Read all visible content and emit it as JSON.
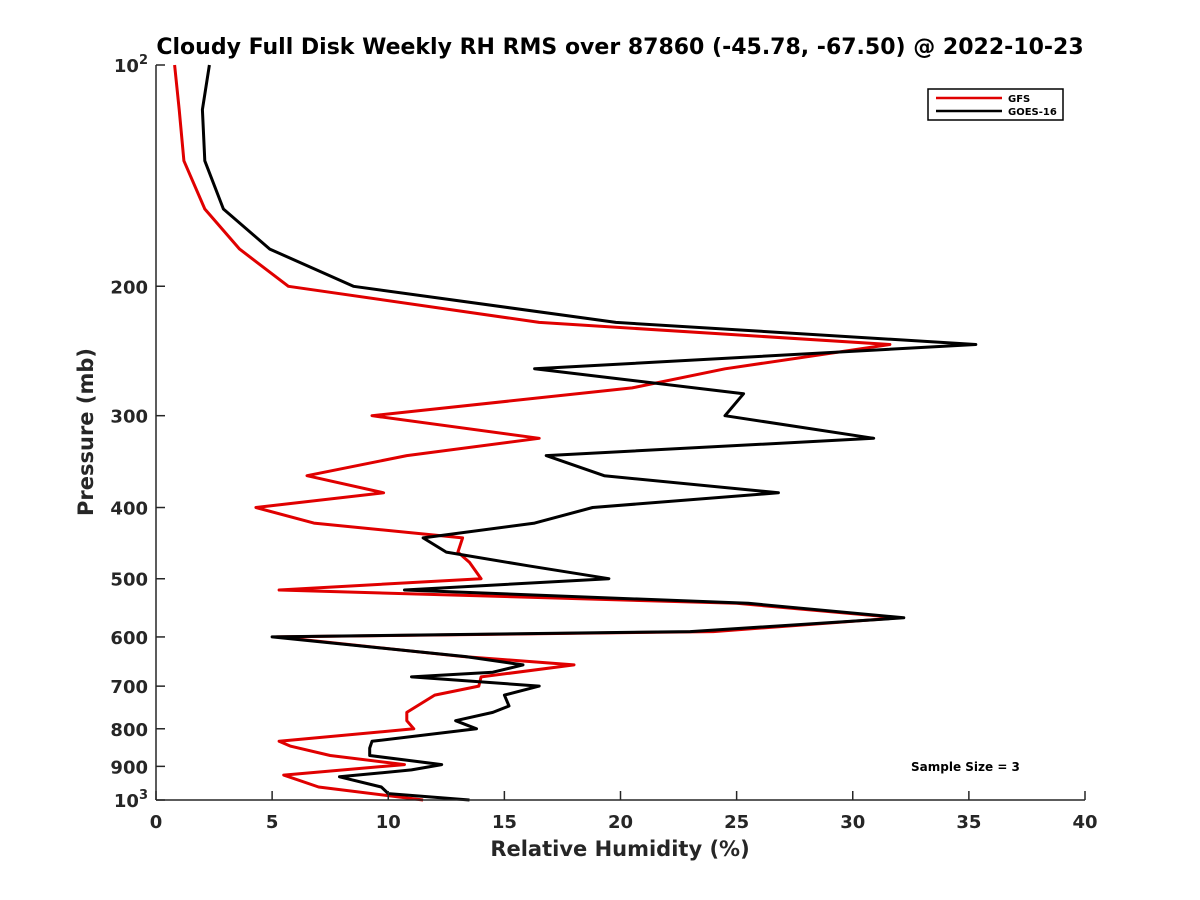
{
  "chart_data": {
    "type": "line",
    "title": "Cloudy Full Disk Weekly RH RMS over 87860 (-45.78, -67.50) @ 2022-10-23",
    "xlabel": "Relative Humidity (%)",
    "ylabel": "Pressure (mb)",
    "xlim": [
      0,
      40
    ],
    "ylim": [
      100,
      1000
    ],
    "y_scale": "log",
    "y_reversed": true,
    "grid": false,
    "legend_position": "top-right",
    "x_ticks": [
      "0",
      "5",
      "10",
      "15",
      "20",
      "25",
      "30",
      "35",
      "40"
    ],
    "x_tick_values": [
      0,
      5,
      10,
      15,
      20,
      25,
      30,
      35,
      40
    ],
    "y_ticks": [
      {
        "value": 100,
        "base": "10",
        "exp": "2"
      },
      {
        "value": 200,
        "label": "200"
      },
      {
        "value": 300,
        "label": "300"
      },
      {
        "value": 400,
        "label": "400"
      },
      {
        "value": 500,
        "label": "500"
      },
      {
        "value": 600,
        "label": "600"
      },
      {
        "value": 700,
        "label": "700"
      },
      {
        "value": 800,
        "label": "800"
      },
      {
        "value": 900,
        "label": "900"
      },
      {
        "value": 1000,
        "base": "10",
        "exp": "3"
      }
    ],
    "series": [
      {
        "name": "GFS",
        "color": "#e00000",
        "points": [
          [
            0.8,
            100
          ],
          [
            1.0,
            115
          ],
          [
            1.2,
            135
          ],
          [
            2.1,
            157
          ],
          [
            3.6,
            178
          ],
          [
            5.7,
            200
          ],
          [
            16.5,
            224
          ],
          [
            31.6,
            240
          ],
          [
            24.5,
            259
          ],
          [
            20.5,
            275
          ],
          [
            9.3,
            300
          ],
          [
            16.5,
            322
          ],
          [
            10.8,
            340
          ],
          [
            6.5,
            362
          ],
          [
            9.8,
            382
          ],
          [
            4.3,
            400
          ],
          [
            6.8,
            420
          ],
          [
            13.2,
            440
          ],
          [
            13.0,
            460
          ],
          [
            13.5,
            475
          ],
          [
            14.0,
            500
          ],
          [
            5.3,
            518
          ],
          [
            25.0,
            540
          ],
          [
            32.0,
            565
          ],
          [
            24.0,
            590
          ],
          [
            5.2,
            600
          ],
          [
            13.2,
            638
          ],
          [
            18.0,
            655
          ],
          [
            14.0,
            680
          ],
          [
            13.9,
            700
          ],
          [
            12.0,
            720
          ],
          [
            10.8,
            760
          ],
          [
            10.8,
            780
          ],
          [
            11.1,
            800
          ],
          [
            5.3,
            832
          ],
          [
            5.8,
            845
          ],
          [
            7.5,
            870
          ],
          [
            10.7,
            895
          ],
          [
            5.5,
            925
          ],
          [
            7.0,
            960
          ],
          [
            11.5,
            1000
          ]
        ]
      },
      {
        "name": "GOES-16",
        "color": "#000000",
        "points": [
          [
            2.3,
            100
          ],
          [
            2.0,
            115
          ],
          [
            2.1,
            135
          ],
          [
            2.9,
            157
          ],
          [
            4.9,
            178
          ],
          [
            8.5,
            200
          ],
          [
            19.8,
            224
          ],
          [
            35.3,
            240
          ],
          [
            16.3,
            259
          ],
          [
            25.3,
            280
          ],
          [
            24.5,
            300
          ],
          [
            30.9,
            322
          ],
          [
            16.8,
            340
          ],
          [
            19.3,
            362
          ],
          [
            26.8,
            382
          ],
          [
            18.8,
            400
          ],
          [
            16.3,
            420
          ],
          [
            11.5,
            440
          ],
          [
            12.5,
            460
          ],
          [
            16.0,
            480
          ],
          [
            19.5,
            500
          ],
          [
            10.7,
            518
          ],
          [
            25.5,
            540
          ],
          [
            32.2,
            565
          ],
          [
            23.0,
            590
          ],
          [
            5.0,
            600
          ],
          [
            13.3,
            638
          ],
          [
            15.8,
            655
          ],
          [
            14.5,
            670
          ],
          [
            11.0,
            680
          ],
          [
            16.5,
            700
          ],
          [
            15.0,
            720
          ],
          [
            15.2,
            745
          ],
          [
            14.5,
            760
          ],
          [
            12.9,
            780
          ],
          [
            13.8,
            800
          ],
          [
            9.3,
            832
          ],
          [
            9.2,
            850
          ],
          [
            9.2,
            870
          ],
          [
            12.3,
            895
          ],
          [
            11.0,
            910
          ],
          [
            7.9,
            930
          ],
          [
            9.7,
            960
          ],
          [
            10.0,
            980
          ],
          [
            13.5,
            1000
          ]
        ]
      }
    ],
    "annotation": "Sample Size = 3"
  }
}
